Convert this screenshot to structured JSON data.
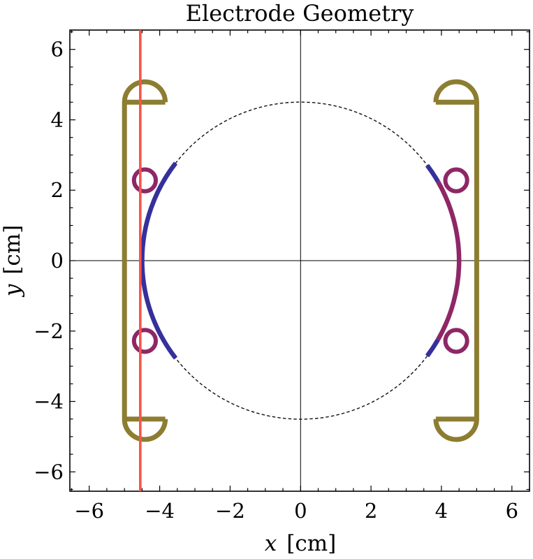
{
  "page": {
    "background": "#ffffff"
  },
  "chart_data": {
    "type": "line",
    "title": "Electrode Geometry",
    "xlabel": "x [cm]",
    "ylabel": "y [cm]",
    "xlabel_parts": {
      "var": "x",
      "unit": "[cm]"
    },
    "ylabel_parts": {
      "var": "y",
      "unit": "[cm]"
    },
    "xlim": [
      -6.55,
      6.5
    ],
    "ylim": [
      -6.55,
      6.55
    ],
    "xticks": [
      -6,
      -4,
      -2,
      0,
      2,
      4,
      6
    ],
    "yticks": [
      -6,
      -4,
      -2,
      0,
      2,
      4,
      6
    ],
    "xtick_labels": [
      "−6",
      "−4",
      "−2",
      "0",
      "2",
      "4",
      "6"
    ],
    "ytick_labels": [
      "−6",
      "−4",
      "−2",
      "0",
      "2",
      "4",
      "6"
    ],
    "minor_tick_step": 0.5,
    "grid": false,
    "frame": true,
    "ticks_all_sides": true,
    "axes_lines": {
      "x_equals_0": true,
      "y_equals_0": true
    },
    "colors": {
      "electrode_frame_olive": "#8C7D31",
      "arc_blue": "#36309B",
      "arc_purple": "#8E2766",
      "ring_purple": "#8E2766",
      "reference_red": "#FB5449",
      "dashed_circle": "#111111",
      "axis_black": "#000000"
    },
    "beam_circle": {
      "cx": 0,
      "cy": 0,
      "r": 4.5,
      "style": "dashed"
    },
    "reference_line": {
      "orientation": "vertical",
      "x": -4.55,
      "spans_full_height": true
    },
    "electrode_arcs": [
      {
        "name": "left-arc-blue",
        "r": 4.5,
        "start_deg": 142,
        "end_deg": 218,
        "color_key": "arc_blue"
      },
      {
        "name": "right-arc-purple",
        "r": 4.5,
        "start_deg": -30,
        "end_deg": 30,
        "color_key": "arc_purple"
      },
      {
        "name": "right-arc-blue-top",
        "r": 4.5,
        "start_deg": 30,
        "end_deg": 37,
        "color_key": "arc_blue"
      },
      {
        "name": "right-arc-blue-bottom",
        "r": 4.5,
        "start_deg": -37,
        "end_deg": -30,
        "color_key": "arc_blue"
      }
    ],
    "rod_rings": [
      {
        "cx": -4.42,
        "cy": 2.28,
        "r": 0.31
      },
      {
        "cx": -4.42,
        "cy": -2.28,
        "r": 0.31
      },
      {
        "cx": 4.42,
        "cy": 2.28,
        "r": 0.31
      },
      {
        "cx": 4.42,
        "cy": -2.28,
        "r": 0.31
      }
    ],
    "electrode_brackets": [
      {
        "side": "left",
        "bar_x": -5.0,
        "stub_end_x": -3.84,
        "y_top": 4.5,
        "y_bottom": -4.5
      },
      {
        "side": "right",
        "bar_x": 5.0,
        "stub_end_x": 3.84,
        "y_top": 4.5,
        "y_bottom": -4.5
      }
    ],
    "electrode_bumps": [
      {
        "cx": -4.42,
        "cy": 4.5,
        "r": 0.58,
        "dir": "up"
      },
      {
        "cx": -4.42,
        "cy": -4.5,
        "r": 0.58,
        "dir": "down"
      },
      {
        "cx": 4.42,
        "cy": 4.5,
        "r": 0.58,
        "dir": "up"
      },
      {
        "cx": 4.42,
        "cy": -4.5,
        "r": 0.58,
        "dir": "down"
      }
    ]
  }
}
